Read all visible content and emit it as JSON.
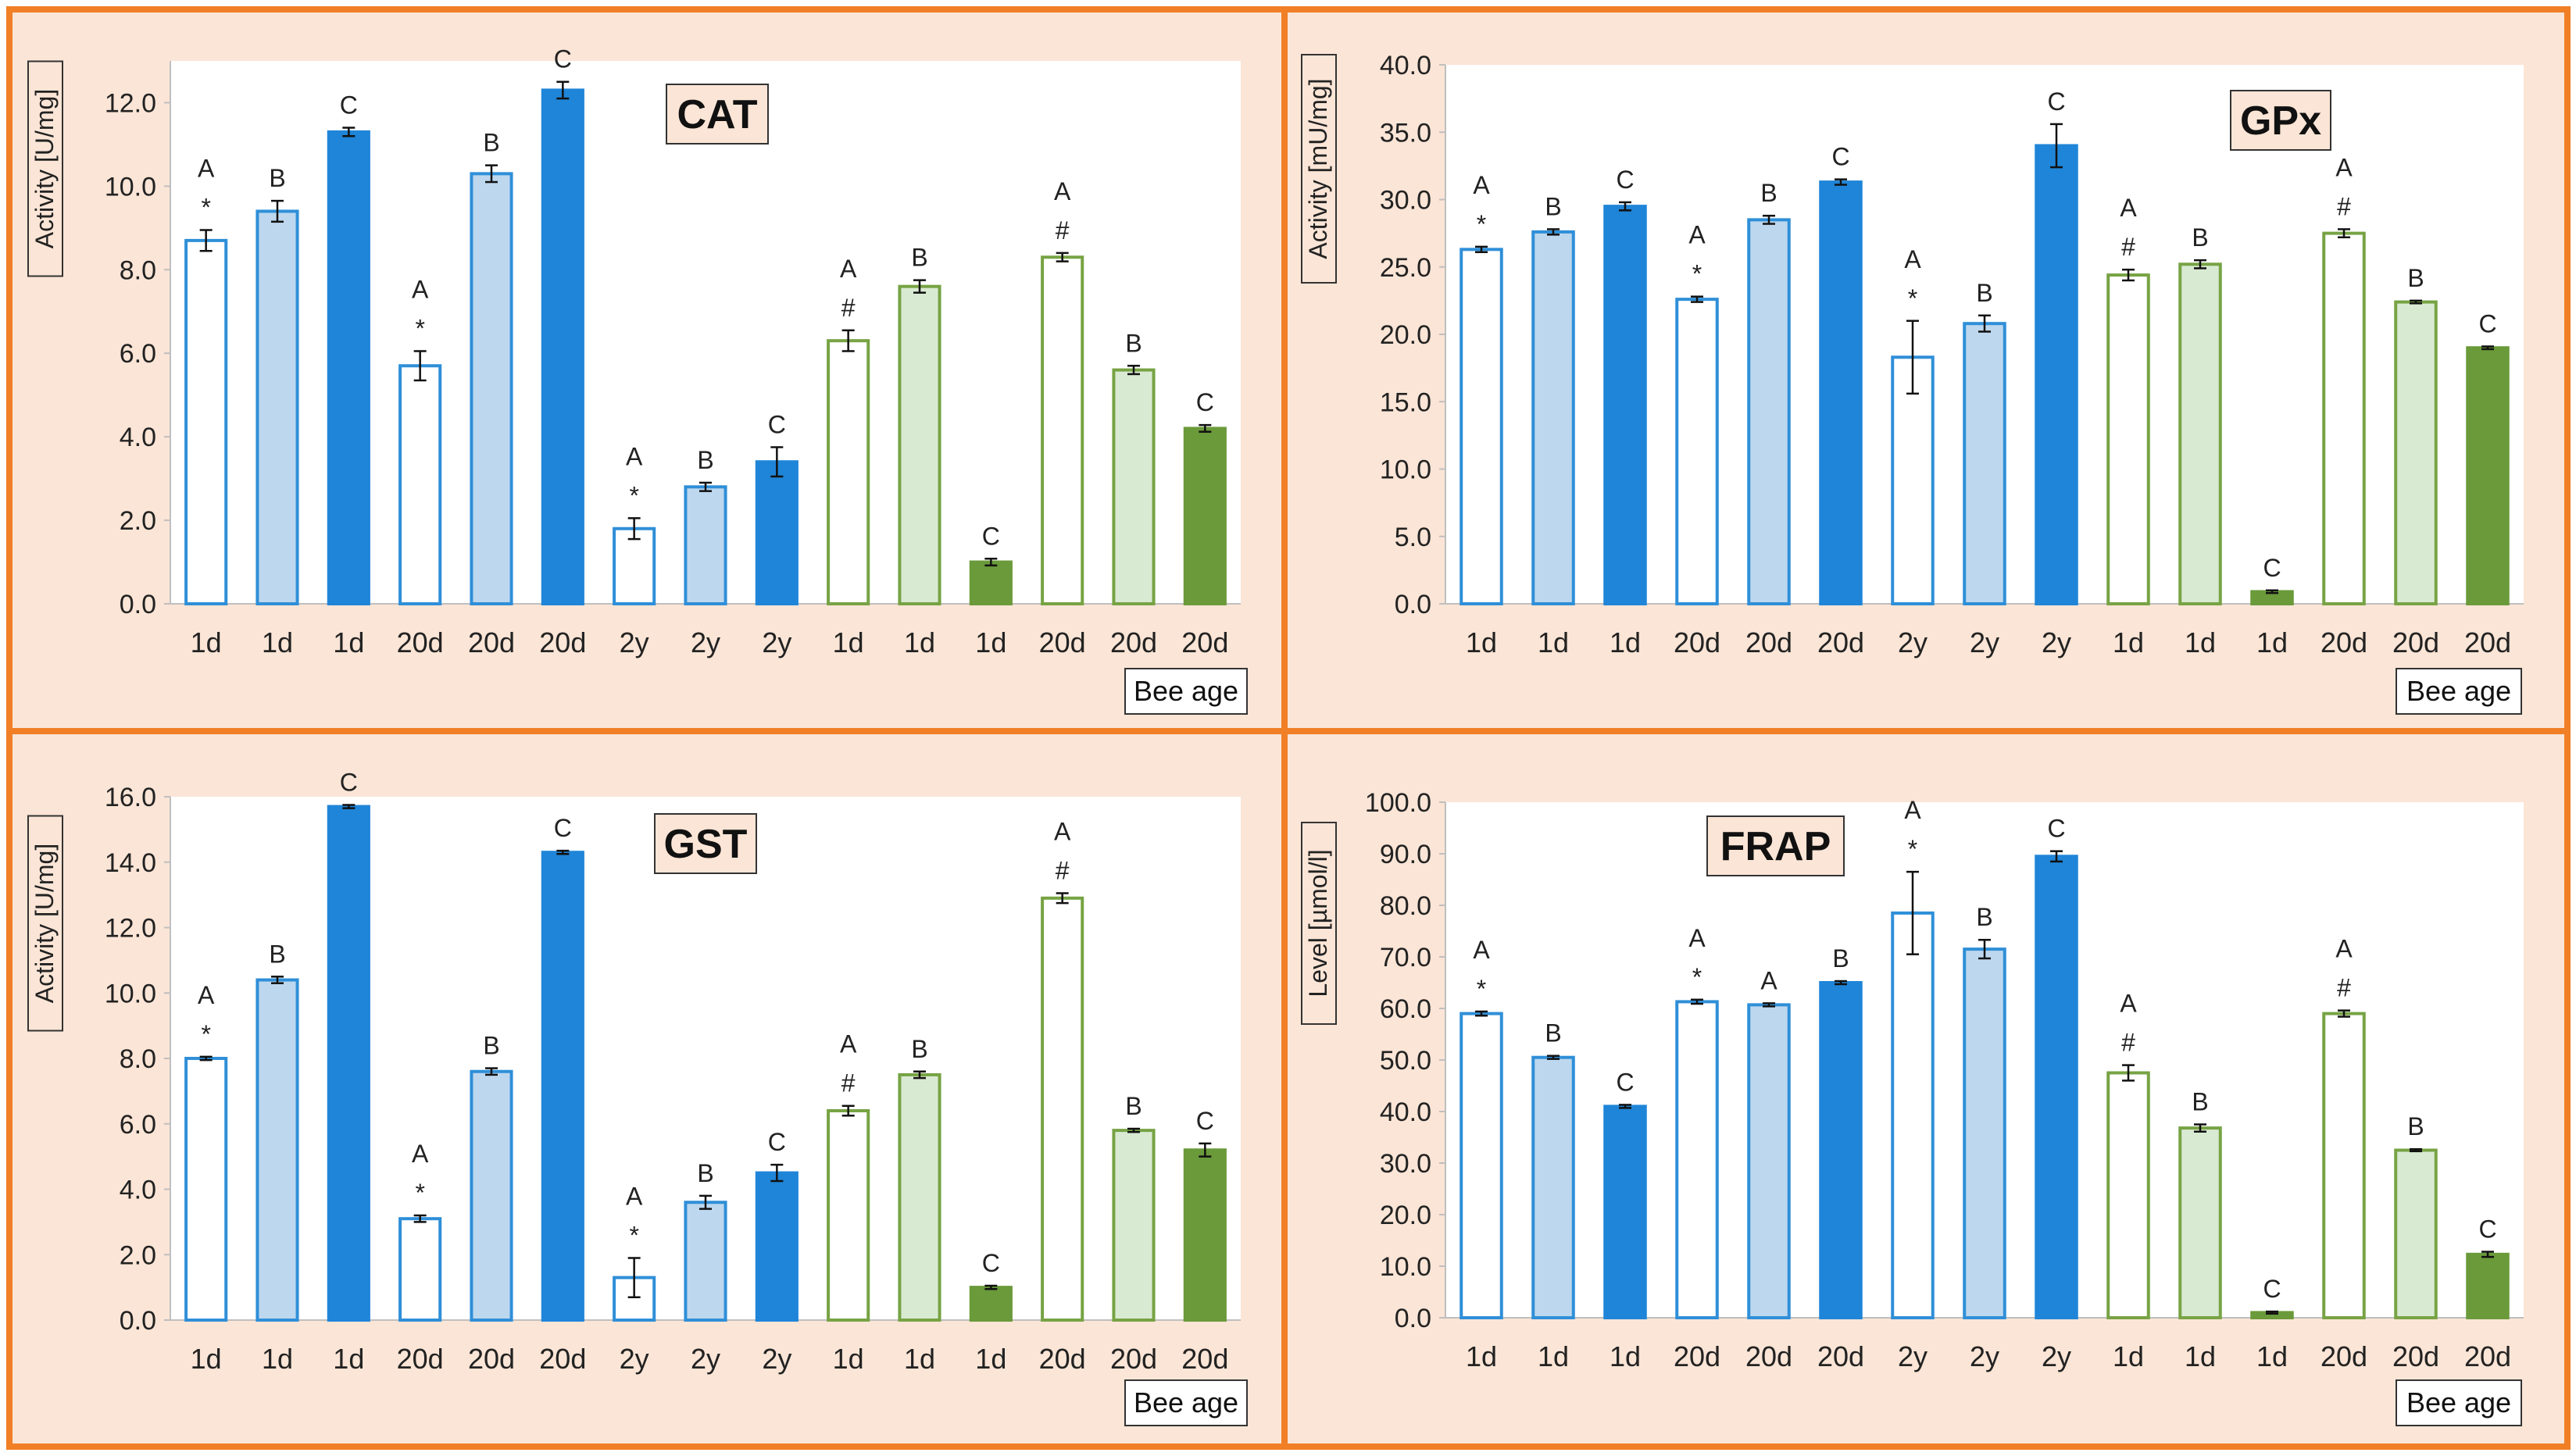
{
  "chart_data": [
    {
      "type": "bar",
      "title": "CAT",
      "ylabel": "Activity [U/mg]",
      "xlabel": "Bee age",
      "ylim": [
        0,
        13
      ],
      "yticks": [
        "0.0",
        "2.0",
        "4.0",
        "6.0",
        "8.0",
        "10.0",
        "12.0"
      ],
      "ytick_values": [
        0,
        2,
        4,
        6,
        8,
        10,
        12
      ],
      "categories": [
        "1d",
        "1d",
        "1d",
        "20d",
        "20d",
        "20d",
        "2y",
        "2y",
        "2y",
        "1d",
        "1d",
        "1d",
        "20d",
        "20d",
        "20d"
      ],
      "values": [
        8.7,
        9.4,
        11.3,
        5.7,
        10.3,
        12.3,
        1.8,
        2.8,
        3.4,
        6.3,
        7.6,
        1.0,
        8.3,
        5.6,
        4.2
      ],
      "errors": [
        0.25,
        0.25,
        0.1,
        0.35,
        0.2,
        0.2,
        0.25,
        0.1,
        0.35,
        0.25,
        0.15,
        0.08,
        0.1,
        0.1,
        0.08
      ],
      "labels": [
        [
          "A",
          "*"
        ],
        [
          "B"
        ],
        [
          "C"
        ],
        [
          "A",
          "*"
        ],
        [
          "B"
        ],
        [
          "C"
        ],
        [
          "A",
          "*"
        ],
        [
          "B"
        ],
        [
          "C"
        ],
        [
          "A",
          "#"
        ],
        [
          "B"
        ],
        [
          "C"
        ],
        [
          "A",
          "#"
        ],
        [
          "B"
        ],
        [
          "C"
        ]
      ]
    },
    {
      "type": "bar",
      "title": "GPx",
      "ylabel": "Activity [mU/mg]",
      "xlabel": "Bee age",
      "ylim": [
        0,
        40
      ],
      "yticks": [
        "0.0",
        "5.0",
        "10.0",
        "15.0",
        "20.0",
        "25.0",
        "30.0",
        "35.0",
        "40.0"
      ],
      "ytick_values": [
        0,
        5,
        10,
        15,
        20,
        25,
        30,
        35,
        40
      ],
      "categories": [
        "1d",
        "1d",
        "1d",
        "20d",
        "20d",
        "20d",
        "2y",
        "2y",
        "2y",
        "1d",
        "1d",
        "1d",
        "20d",
        "20d",
        "20d"
      ],
      "values": [
        26.3,
        27.6,
        29.5,
        22.6,
        28.5,
        31.3,
        18.3,
        20.8,
        34.0,
        24.4,
        25.2,
        0.9,
        27.5,
        22.4,
        19.0
      ],
      "errors": [
        0.2,
        0.2,
        0.3,
        0.2,
        0.3,
        0.2,
        2.7,
        0.6,
        1.6,
        0.4,
        0.3,
        0.1,
        0.3,
        0.1,
        0.1
      ],
      "labels": [
        [
          "A",
          "*"
        ],
        [
          "B"
        ],
        [
          "C"
        ],
        [
          "A",
          "*"
        ],
        [
          "B"
        ],
        [
          "C"
        ],
        [
          "A",
          "*"
        ],
        [
          "B"
        ],
        [
          "C"
        ],
        [
          "A",
          "#"
        ],
        [
          "B"
        ],
        [
          "C"
        ],
        [
          "A",
          "#"
        ],
        [
          "B"
        ],
        [
          "C"
        ]
      ]
    },
    {
      "type": "bar",
      "title": "GST",
      "ylabel": "Activity [U/mg]",
      "xlabel": "Bee age",
      "ylim": [
        0,
        16
      ],
      "yticks": [
        "0.0",
        "2.0",
        "4.0",
        "6.0",
        "8.0",
        "10.0",
        "12.0",
        "14.0",
        "16.0"
      ],
      "ytick_values": [
        0,
        2,
        4,
        6,
        8,
        10,
        12,
        14,
        16
      ],
      "categories": [
        "1d",
        "1d",
        "1d",
        "20d",
        "20d",
        "20d",
        "2y",
        "2y",
        "2y",
        "1d",
        "1d",
        "1d",
        "20d",
        "20d",
        "20d"
      ],
      "values": [
        8.0,
        10.4,
        15.7,
        3.1,
        7.6,
        14.3,
        1.3,
        3.6,
        4.5,
        6.4,
        7.5,
        1.0,
        12.9,
        5.8,
        5.2
      ],
      "errors": [
        0.05,
        0.1,
        0.05,
        0.1,
        0.1,
        0.05,
        0.6,
        0.2,
        0.25,
        0.15,
        0.1,
        0.05,
        0.15,
        0.05,
        0.2
      ],
      "labels": [
        [
          "A",
          "*"
        ],
        [
          "B"
        ],
        [
          "C"
        ],
        [
          "A",
          "*"
        ],
        [
          "B"
        ],
        [
          "C"
        ],
        [
          "A",
          "*"
        ],
        [
          "B"
        ],
        [
          "C"
        ],
        [
          "A",
          "#"
        ],
        [
          "B"
        ],
        [
          "C"
        ],
        [
          "A",
          "#"
        ],
        [
          "B"
        ],
        [
          "C"
        ]
      ]
    },
    {
      "type": "bar",
      "title": "FRAP",
      "ylabel": "Level [µmol/l]",
      "xlabel": "Bee age",
      "ylim": [
        0,
        100
      ],
      "yticks": [
        "0.0",
        "10.0",
        "20.0",
        "30.0",
        "40.0",
        "50.0",
        "60.0",
        "70.0",
        "80.0",
        "90.0",
        "100.0"
      ],
      "ytick_values": [
        0,
        10,
        20,
        30,
        40,
        50,
        60,
        70,
        80,
        90,
        100
      ],
      "categories": [
        "1d",
        "1d",
        "1d",
        "20d",
        "20d",
        "20d",
        "2y",
        "2y",
        "2y",
        "1d",
        "1d",
        "1d",
        "20d",
        "20d",
        "20d"
      ],
      "values": [
        59.0,
        50.5,
        41.0,
        61.3,
        60.7,
        65.0,
        78.5,
        71.5,
        89.5,
        47.5,
        36.8,
        1.0,
        59.0,
        32.5,
        12.3
      ],
      "errors": [
        0.4,
        0.3,
        0.3,
        0.4,
        0.3,
        0.3,
        8.0,
        1.8,
        1.0,
        1.5,
        0.7,
        0.2,
        0.6,
        0.2,
        0.5
      ],
      "labels": [
        [
          "A",
          "*"
        ],
        [
          "B"
        ],
        [
          "C"
        ],
        [
          "A",
          "*"
        ],
        [
          "A"
        ],
        [
          "B"
        ],
        [
          "A",
          "*"
        ],
        [
          "B"
        ],
        [
          "C"
        ],
        [
          "A",
          "#"
        ],
        [
          "B"
        ],
        [
          "C"
        ],
        [
          "A",
          "#"
        ],
        [
          "B"
        ],
        [
          "C"
        ]
      ]
    }
  ],
  "styles": {
    "fills": [
      "#ffffff",
      "#bdd7ee",
      "#1f85d8",
      "#ffffff",
      "#bdd7ee",
      "#1f85d8",
      "#ffffff",
      "#bdd7ee",
      "#1f85d8",
      "#ffffff",
      "#d9ead3",
      "#6a9a3a",
      "#ffffff",
      "#d9ead3",
      "#6a9a3a"
    ],
    "strokes": [
      "#2f8fd8",
      "#2f8fd8",
      "#1f85d8",
      "#2f8fd8",
      "#2f8fd8",
      "#1f85d8",
      "#2f8fd8",
      "#2f8fd8",
      "#1f85d8",
      "#77a344",
      "#77a344",
      "#6a9a3a",
      "#77a344",
      "#77a344",
      "#6a9a3a"
    ],
    "panel_background": "#fbe5d6",
    "panel_border": "#f07f26",
    "plot_background": "#ffffff"
  }
}
